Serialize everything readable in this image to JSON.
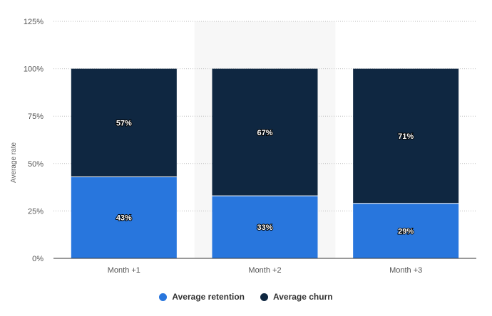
{
  "chart_data": {
    "type": "bar",
    "stacked": true,
    "categories": [
      "Month +1",
      "Month +2",
      "Month +3"
    ],
    "series": [
      {
        "name": "Average retention",
        "values": [
          43,
          33,
          29
        ],
        "labels": [
          "43%",
          "33%",
          "29%"
        ],
        "color": "#2876dd"
      },
      {
        "name": "Average churn",
        "values": [
          57,
          67,
          71
        ],
        "labels": [
          "57%",
          "67%",
          "71%"
        ],
        "color": "#0f2741"
      }
    ],
    "ylabel": "Average rate",
    "xlabel": "",
    "ylim": [
      0,
      125
    ],
    "yticks": [
      0,
      25,
      50,
      75,
      100,
      125
    ],
    "ytick_labels": [
      "0%",
      "25%",
      "50%",
      "75%",
      "100%",
      "125%"
    ],
    "grid": true,
    "highlighted_category": "Month +2",
    "legend_position": "bottom"
  }
}
